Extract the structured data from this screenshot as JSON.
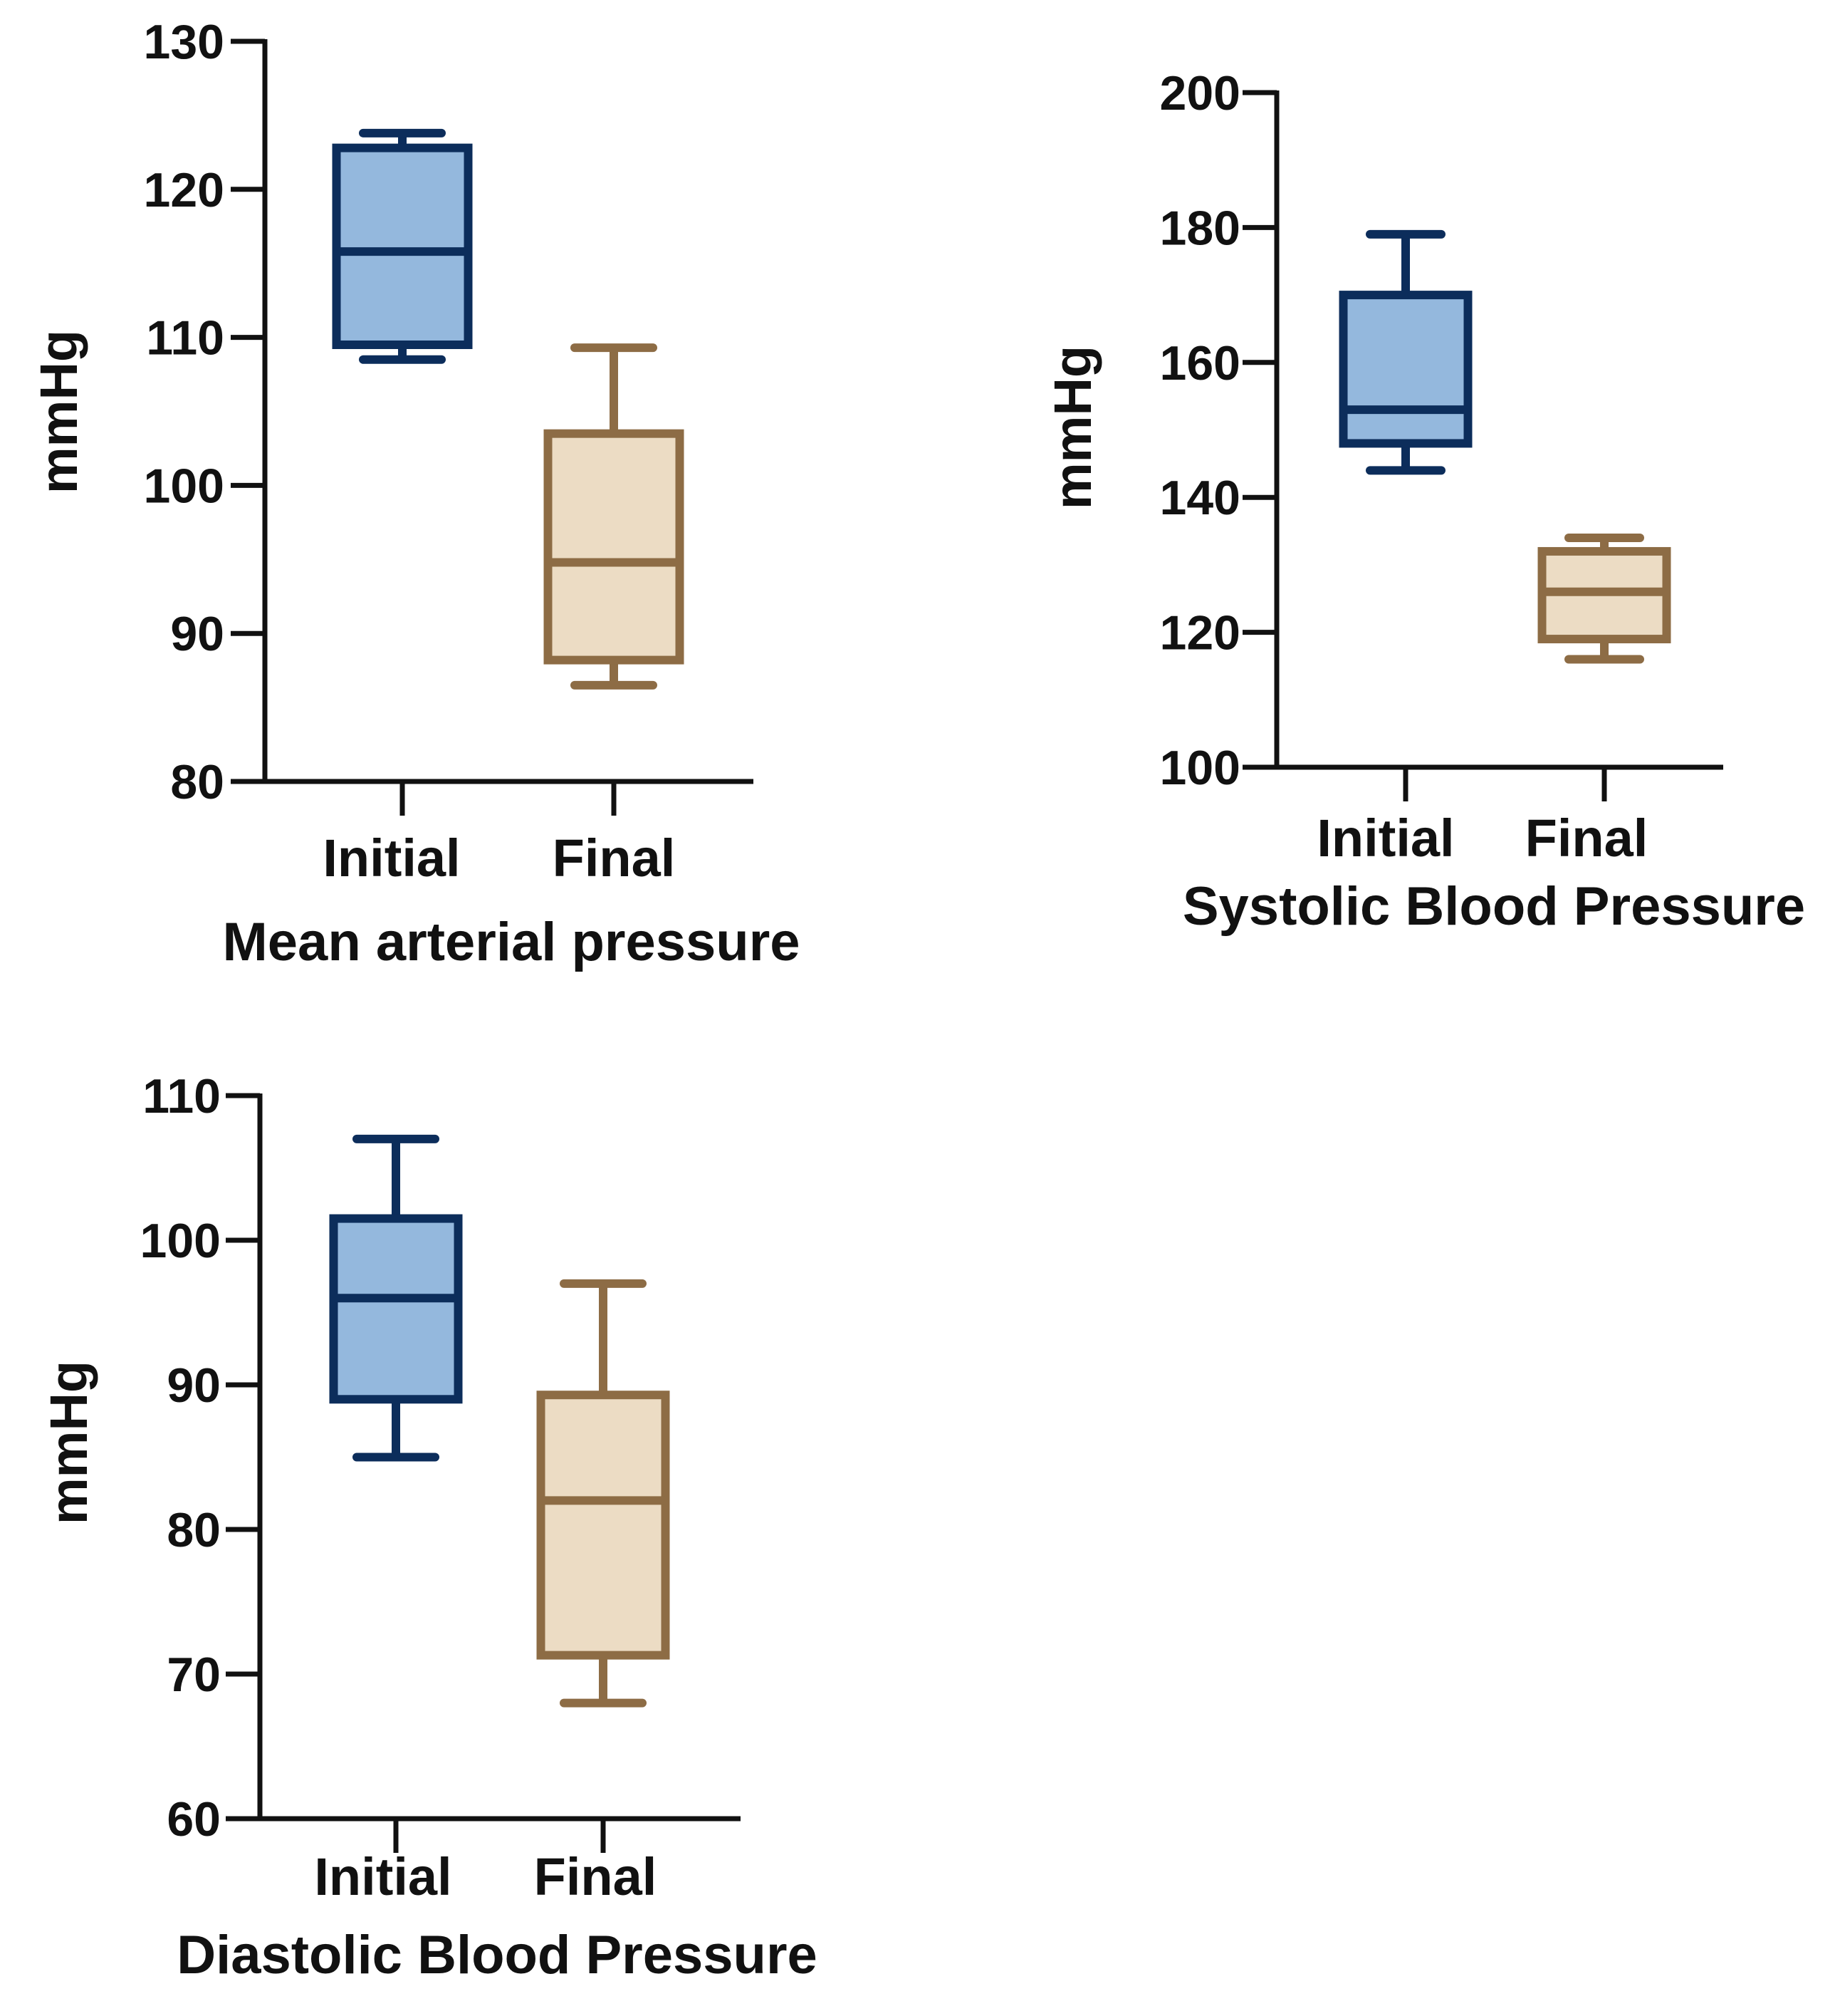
{
  "chart_data": [
    {
      "type": "box",
      "title": "Mean arterial pressure",
      "xlabel": "Mean arterial pressure",
      "ylabel": "mmHg",
      "ylim": [
        80,
        130
      ],
      "yticks": [
        80,
        90,
        100,
        110,
        120,
        130
      ],
      "categories": [
        "Initial",
        "Final"
      ],
      "series": [
        {
          "name": "Initial",
          "min": 108.5,
          "q1": 109.5,
          "median": 115.8,
          "q3": 122.8,
          "max": 123.8,
          "fill": "#94b8dd",
          "stroke": "#0c2d5b"
        },
        {
          "name": "Final",
          "min": 86.5,
          "q1": 88.2,
          "median": 94.8,
          "q3": 103.5,
          "max": 109.3,
          "fill": "#ecdcc4",
          "stroke": "#8d6c45"
        }
      ]
    },
    {
      "type": "box",
      "title": "Systolic Blood Pressure",
      "xlabel": "Systolic Blood Pressure",
      "ylabel": "mmHg",
      "ylim": [
        100,
        200
      ],
      "yticks": [
        100,
        120,
        140,
        160,
        180,
        200
      ],
      "categories": [
        "Initial",
        "Final"
      ],
      "series": [
        {
          "name": "Initial",
          "min": 144,
          "q1": 148,
          "median": 153,
          "q3": 170,
          "max": 179,
          "fill": "#94b8dd",
          "stroke": "#0c2d5b"
        },
        {
          "name": "Final",
          "min": 116,
          "q1": 119,
          "median": 126,
          "q3": 132,
          "max": 134,
          "fill": "#ecdcc4",
          "stroke": "#8d6c45"
        }
      ]
    },
    {
      "type": "box",
      "title": "Diastolic Blood Pressure",
      "xlabel": "Diastolic Blood Pressure",
      "ylabel": "mmHg",
      "ylim": [
        60,
        110
      ],
      "yticks": [
        60,
        70,
        80,
        90,
        100,
        110
      ],
      "categories": [
        "Initial",
        "Final"
      ],
      "series": [
        {
          "name": "Initial",
          "min": 85,
          "q1": 89,
          "median": 96,
          "q3": 101.5,
          "max": 107,
          "fill": "#94b8dd",
          "stroke": "#0c2d5b"
        },
        {
          "name": "Final",
          "min": 68,
          "q1": 71.3,
          "median": 82,
          "q3": 89.3,
          "max": 97,
          "fill": "#ecdcc4",
          "stroke": "#8d6c45"
        }
      ]
    }
  ]
}
